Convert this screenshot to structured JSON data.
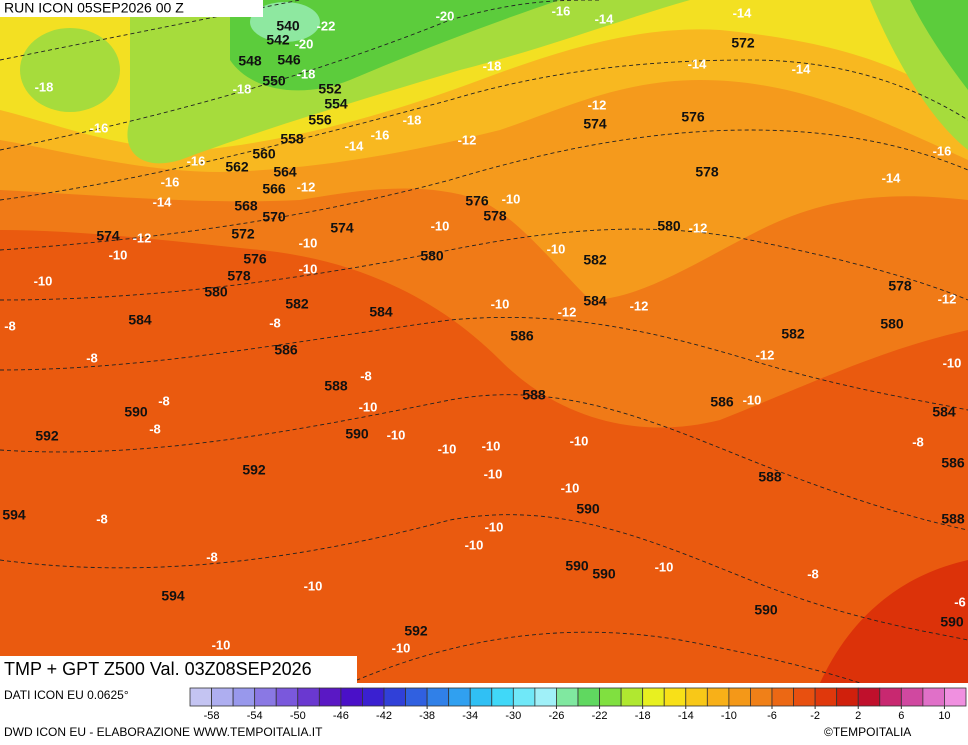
{
  "header": {
    "run": "RUN ICON 05SEP2026 00 Z",
    "title": "TMP + GPT Z500 Val. 03Z08SEP2026"
  },
  "map": {
    "geopotential_labels": [
      540,
      542,
      548,
      546,
      550,
      552,
      554,
      556,
      558,
      560,
      562,
      564,
      566,
      568,
      570,
      572,
      574,
      574,
      576,
      576,
      578,
      578,
      580,
      580,
      580,
      582,
      582,
      582,
      584,
      584,
      584,
      586,
      586,
      586,
      588,
      588,
      590,
      590,
      590,
      590,
      590,
      590,
      592,
      592,
      592,
      594,
      594,
      572,
      574,
      576,
      578,
      578,
      580,
      584,
      586,
      588,
      588,
      590
    ],
    "temperature_labels": [
      -20,
      -22,
      -20,
      -18,
      -18,
      -18,
      -16,
      -18,
      -16,
      -14,
      -16,
      -16,
      -14,
      -12,
      -12,
      -10,
      -12,
      -10,
      -10,
      -10,
      -10,
      -10,
      -8,
      -8,
      -8,
      -8,
      -8,
      -8,
      -10,
      -10,
      -10,
      -10,
      -10,
      -10,
      -10,
      -10,
      -10,
      -10,
      -8,
      -8,
      -10,
      -10,
      -10,
      -10,
      -10,
      -12,
      -12,
      -12,
      -12,
      -14,
      -16,
      -18,
      -14,
      -14,
      -14,
      -16,
      -14,
      -12,
      -12,
      -10,
      -10,
      -8,
      -8,
      -6
    ]
  },
  "legend": {
    "source": "DATI ICON EU 0.0625°",
    "range": [
      -60,
      12
    ],
    "colors": [
      "#c4c4f2",
      "#aeaef0",
      "#9898ec",
      "#8a78e4",
      "#7a58dc",
      "#6a38d0",
      "#5a18c4",
      "#4a10c8",
      "#3a20d0",
      "#3040d8",
      "#3060e0",
      "#3080e8",
      "#30a0f0",
      "#30c0f4",
      "#40d8f8",
      "#70e8f8",
      "#a0f0f8",
      "#80e8a0",
      "#60d860",
      "#80e040",
      "#b0e830",
      "#e8f020",
      "#f8e018",
      "#f8c818",
      "#f8b018",
      "#f49818",
      "#f08018",
      "#ec6814",
      "#e85010",
      "#e0380c",
      "#d0200c",
      "#c0102c",
      "#c82870",
      "#d048a0",
      "#e070c8",
      "#f090e0"
    ],
    "ticks": [
      -58,
      -54,
      -50,
      -46,
      -42,
      -38,
      -34,
      -30,
      -26,
      -22,
      -18,
      -14,
      -10,
      -6,
      -2,
      2,
      6,
      10
    ]
  },
  "footer": {
    "credit": "DWD ICON EU - ELABORAZIONE WWW.TEMPOITALIA.IT",
    "copyright": "©TEMPOITALIA"
  }
}
